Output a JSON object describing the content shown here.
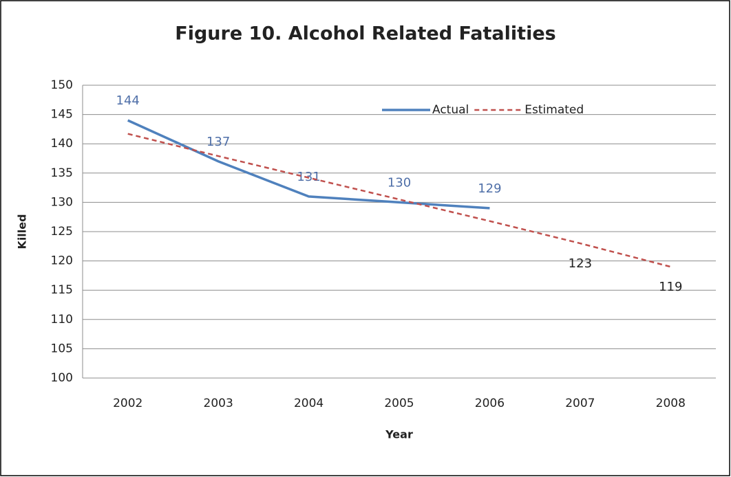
{
  "chart_data": {
    "type": "line",
    "title": "Figure 10. Alcohol Related Fatalities",
    "x_label": "Year",
    "y_label": "Killed",
    "categories": [
      "2002",
      "2003",
      "2004",
      "2005",
      "2006",
      "2007",
      "2008"
    ],
    "series": [
      {
        "name": "Actual",
        "color": "#4f81bd",
        "dash": false,
        "values": [
          144,
          137,
          131,
          130,
          129,
          null,
          null
        ],
        "value_labels": [
          "144",
          "137",
          "131",
          "130",
          "129",
          null,
          null
        ],
        "label_color": "#4f6fa8"
      },
      {
        "name": "Estimated",
        "color": "#c0504d",
        "dash": true,
        "values": [
          141.7,
          137.9,
          134.2,
          130.5,
          126.8,
          123,
          119
        ],
        "value_labels": [
          null,
          null,
          null,
          null,
          null,
          "123",
          "119"
        ],
        "label_color": "#222222"
      }
    ],
    "ylim": [
      100,
      150
    ],
    "yticks": [
      100,
      105,
      110,
      115,
      120,
      125,
      130,
      135,
      140,
      145,
      150
    ],
    "grid": true,
    "legend": "top"
  }
}
